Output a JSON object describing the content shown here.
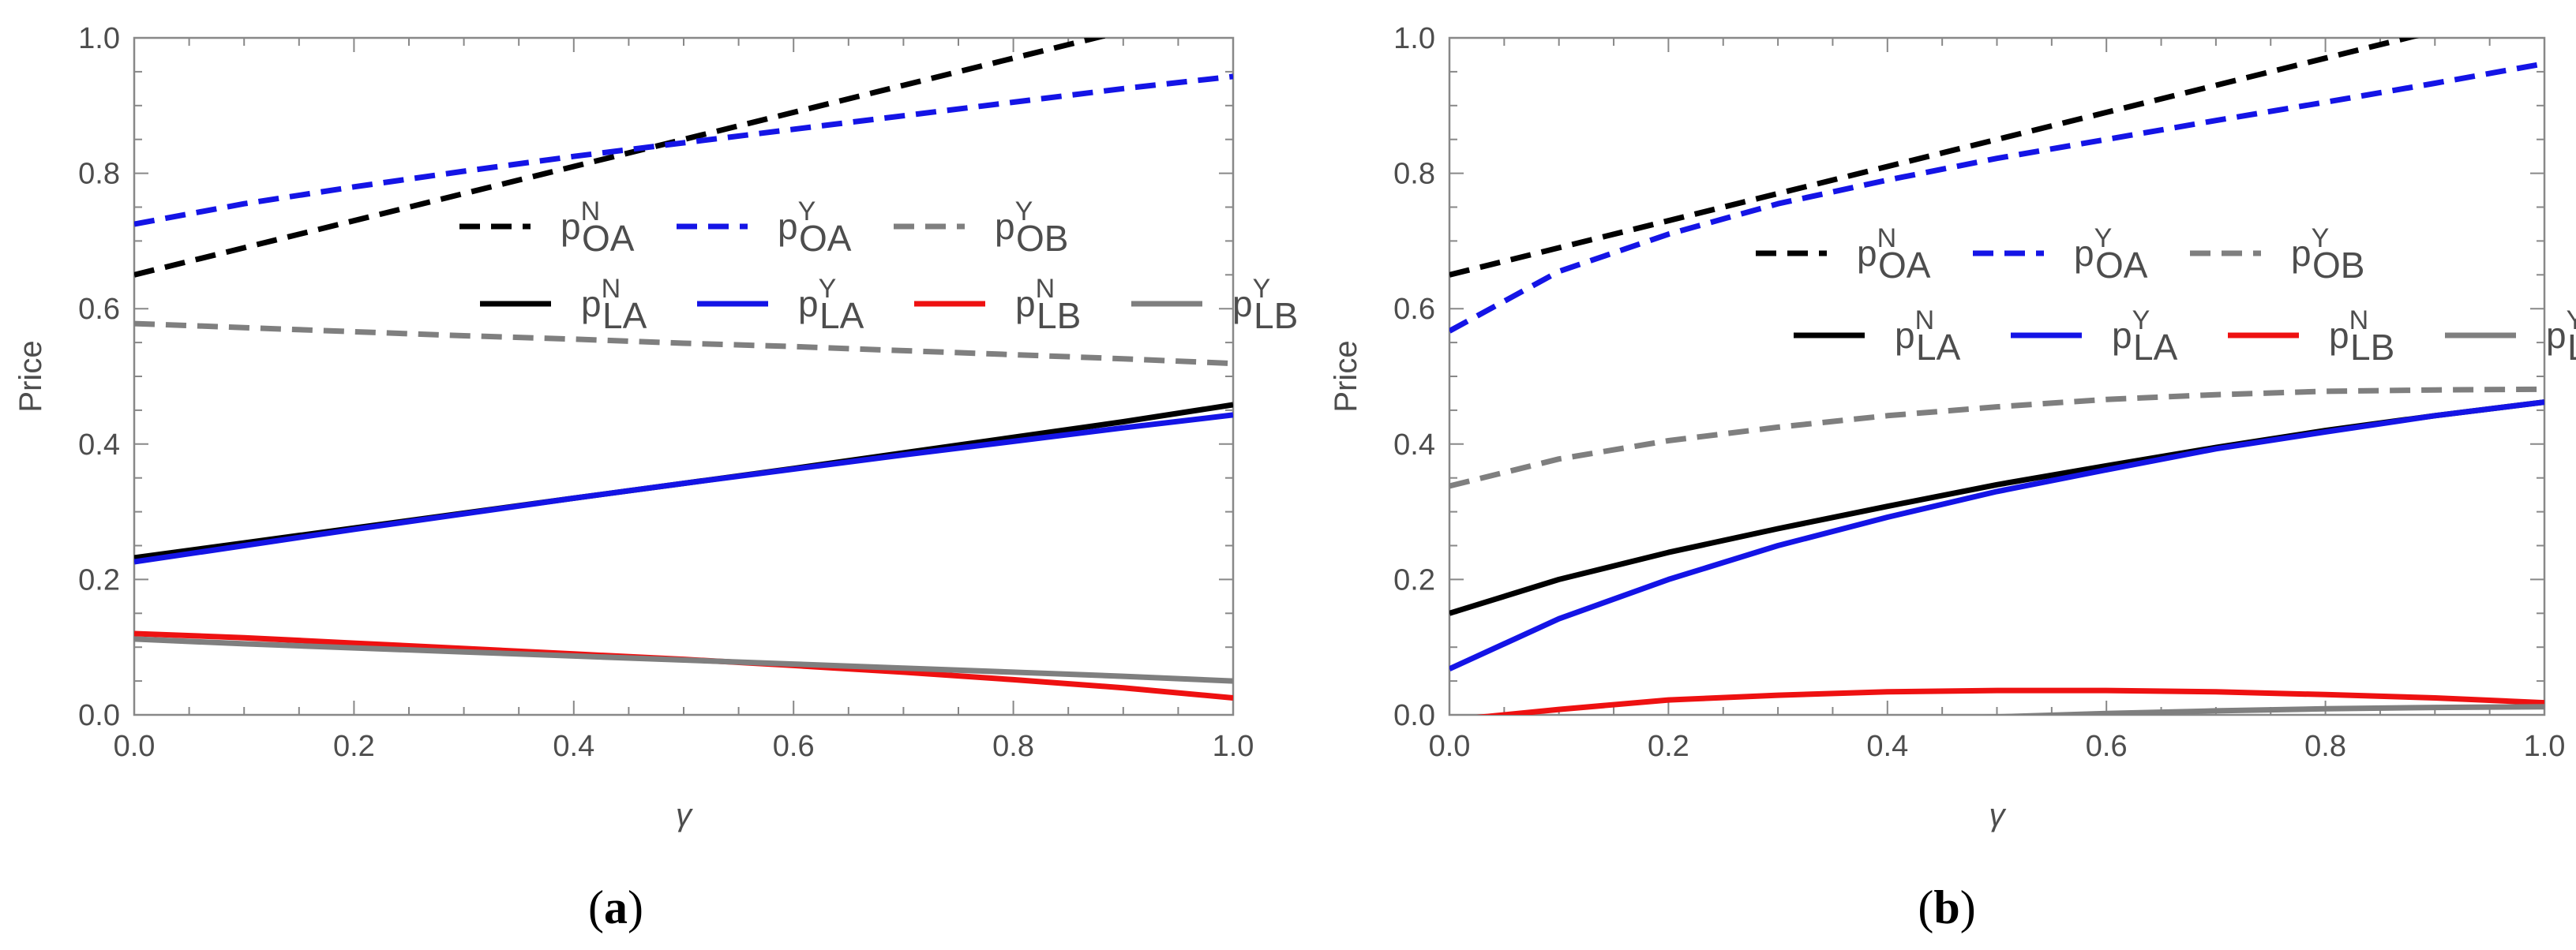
{
  "colors": {
    "black": "#000000",
    "blue": "#1414e6",
    "gray": "#7f7f7f",
    "red": "#ee1111",
    "frame": "#888888"
  },
  "chart_data": [
    {
      "panel": "a",
      "caption": "(a)",
      "type": "line",
      "xlabel": "γ",
      "ylabel": "Price",
      "xlim": [
        0,
        1
      ],
      "ylim": [
        0,
        1
      ],
      "xticks": [
        "0.0",
        "0.2",
        "0.4",
        "0.6",
        "0.8",
        "1.0"
      ],
      "yticks": [
        "0.0",
        "0.2",
        "0.4",
        "0.6",
        "0.8",
        "1.0"
      ],
      "legend_placement": "center-right",
      "legend_rows": [
        [
          {
            "key": "pOA_N",
            "base": "p",
            "sup": "N",
            "sub": "OA",
            "color": "black",
            "dashed": true
          },
          {
            "key": "pOA_Y",
            "base": "p",
            "sup": "Y",
            "sub": "OA",
            "color": "blue",
            "dashed": true
          },
          {
            "key": "pOB_Y",
            "base": "p",
            "sup": "Y",
            "sub": "OB",
            "color": "gray",
            "dashed": true
          }
        ],
        [
          {
            "key": "pLA_N",
            "base": "p",
            "sup": "N",
            "sub": "LA",
            "color": "black",
            "dashed": false
          },
          {
            "key": "pLA_Y",
            "base": "p",
            "sup": "Y",
            "sub": "LA",
            "color": "blue",
            "dashed": false
          },
          {
            "key": "pLB_N",
            "base": "p",
            "sup": "N",
            "sub": "LB",
            "color": "red",
            "dashed": false
          },
          {
            "key": "pLB_Y",
            "base": "p",
            "sup": "Y",
            "sub": "LB",
            "color": "gray",
            "dashed": false
          }
        ]
      ],
      "x": [
        0,
        0.1,
        0.2,
        0.3,
        0.4,
        0.5,
        0.6,
        0.7,
        0.8,
        0.9,
        1.0
      ],
      "series": [
        {
          "key": "pOA_N",
          "name": "p^N_OA",
          "color": "black",
          "dashed": true,
          "values": [
            0.65,
            0.69,
            0.73,
            0.77,
            0.81,
            0.85,
            0.89,
            0.93,
            0.97,
            1.01,
            1.05
          ]
        },
        {
          "key": "pOA_Y",
          "name": "p^Y_OA",
          "color": "blue",
          "dashed": true,
          "values": [
            0.725,
            0.755,
            0.78,
            0.803,
            0.825,
            0.845,
            0.865,
            0.885,
            0.905,
            0.925,
            0.943
          ]
        },
        {
          "key": "pOB_Y",
          "name": "p^Y_OB",
          "color": "gray",
          "dashed": true,
          "values": [
            0.578,
            0.572,
            0.566,
            0.56,
            0.555,
            0.549,
            0.544,
            0.538,
            0.532,
            0.526,
            0.519
          ]
        },
        {
          "key": "pLA_N",
          "name": "p^N_LA",
          "color": "black",
          "dashed": false,
          "values": [
            0.232,
            0.254,
            0.276,
            0.298,
            0.32,
            0.342,
            0.364,
            0.387,
            0.41,
            0.433,
            0.458
          ]
        },
        {
          "key": "pLA_Y",
          "name": "p^Y_LA",
          "color": "blue",
          "dashed": false,
          "values": [
            0.226,
            0.25,
            0.274,
            0.297,
            0.32,
            0.342,
            0.363,
            0.384,
            0.404,
            0.424,
            0.443
          ]
        },
        {
          "key": "pLB_N",
          "name": "p^N_LB",
          "color": "red",
          "dashed": false,
          "values": [
            0.12,
            0.114,
            0.106,
            0.098,
            0.09,
            0.082,
            0.073,
            0.063,
            0.052,
            0.04,
            0.025
          ]
        },
        {
          "key": "pLB_Y",
          "name": "p^Y_LB",
          "color": "gray",
          "dashed": false,
          "values": [
            0.112,
            0.105,
            0.099,
            0.093,
            0.087,
            0.081,
            0.075,
            0.069,
            0.063,
            0.057,
            0.05
          ]
        }
      ]
    },
    {
      "panel": "b",
      "caption": "(b)",
      "type": "line",
      "xlabel": "γ",
      "ylabel": "Price",
      "xlim": [
        0,
        1
      ],
      "ylim": [
        0,
        1
      ],
      "xticks": [
        "0.0",
        "0.2",
        "0.4",
        "0.6",
        "0.8",
        "1.0"
      ],
      "yticks": [
        "0.0",
        "0.2",
        "0.4",
        "0.6",
        "0.8",
        "1.0"
      ],
      "legend_placement": "center-right",
      "legend_rows": [
        [
          {
            "key": "pOA_N",
            "base": "p",
            "sup": "N",
            "sub": "OA",
            "color": "black",
            "dashed": true
          },
          {
            "key": "pOA_Y",
            "base": "p",
            "sup": "Y",
            "sub": "OA",
            "color": "blue",
            "dashed": true
          },
          {
            "key": "pOB_Y",
            "base": "p",
            "sup": "Y",
            "sub": "OB",
            "color": "gray",
            "dashed": true
          }
        ],
        [
          {
            "key": "pLA_N",
            "base": "p",
            "sup": "N",
            "sub": "LA",
            "color": "black",
            "dashed": false
          },
          {
            "key": "pLA_Y",
            "base": "p",
            "sup": "Y",
            "sub": "LA",
            "color": "blue",
            "dashed": false
          },
          {
            "key": "pLB_N",
            "base": "p",
            "sup": "N",
            "sub": "LB",
            "color": "red",
            "dashed": false
          },
          {
            "key": "pLB_Y",
            "base": "p",
            "sup": "Y",
            "sub": "LB",
            "color": "gray",
            "dashed": false
          }
        ]
      ],
      "x": [
        0,
        0.1,
        0.2,
        0.3,
        0.4,
        0.5,
        0.6,
        0.7,
        0.8,
        0.9,
        1.0
      ],
      "series": [
        {
          "key": "pOA_N",
          "name": "p^N_OA",
          "color": "black",
          "dashed": true,
          "values": [
            0.65,
            0.69,
            0.73,
            0.77,
            0.81,
            0.85,
            0.89,
            0.93,
            0.97,
            1.01,
            1.05
          ]
        },
        {
          "key": "pOA_Y",
          "name": "p^Y_OA",
          "color": "blue",
          "dashed": true,
          "values": [
            0.567,
            0.655,
            0.71,
            0.755,
            0.79,
            0.822,
            0.85,
            0.878,
            0.905,
            0.933,
            0.962
          ]
        },
        {
          "key": "pOB_Y",
          "name": "p^Y_OB",
          "color": "gray",
          "dashed": true,
          "values": [
            0.338,
            0.378,
            0.405,
            0.425,
            0.442,
            0.455,
            0.466,
            0.473,
            0.478,
            0.48,
            0.481
          ]
        },
        {
          "key": "pLA_N",
          "name": "p^N_LA",
          "color": "black",
          "dashed": false,
          "values": [
            0.15,
            0.2,
            0.24,
            0.275,
            0.308,
            0.34,
            0.368,
            0.395,
            0.42,
            0.442,
            0.462
          ]
        },
        {
          "key": "pLA_Y",
          "name": "p^Y_LA",
          "color": "blue",
          "dashed": false,
          "values": [
            0.068,
            0.142,
            0.2,
            0.25,
            0.292,
            0.33,
            0.362,
            0.393,
            0.418,
            0.442,
            0.462
          ]
        },
        {
          "key": "pLB_N",
          "name": "p^N_LB",
          "color": "red",
          "dashed": false,
          "values": [
            -0.008,
            0.008,
            0.022,
            0.029,
            0.034,
            0.036,
            0.036,
            0.034,
            0.03,
            0.025,
            0.018
          ]
        },
        {
          "key": "pLB_Y",
          "name": "p^Y_LB",
          "color": "gray",
          "dashed": false,
          "values": [
            -0.07,
            -0.05,
            -0.034,
            -0.02,
            -0.01,
            -0.003,
            0.002,
            0.006,
            0.009,
            0.011,
            0.012
          ]
        }
      ]
    }
  ]
}
